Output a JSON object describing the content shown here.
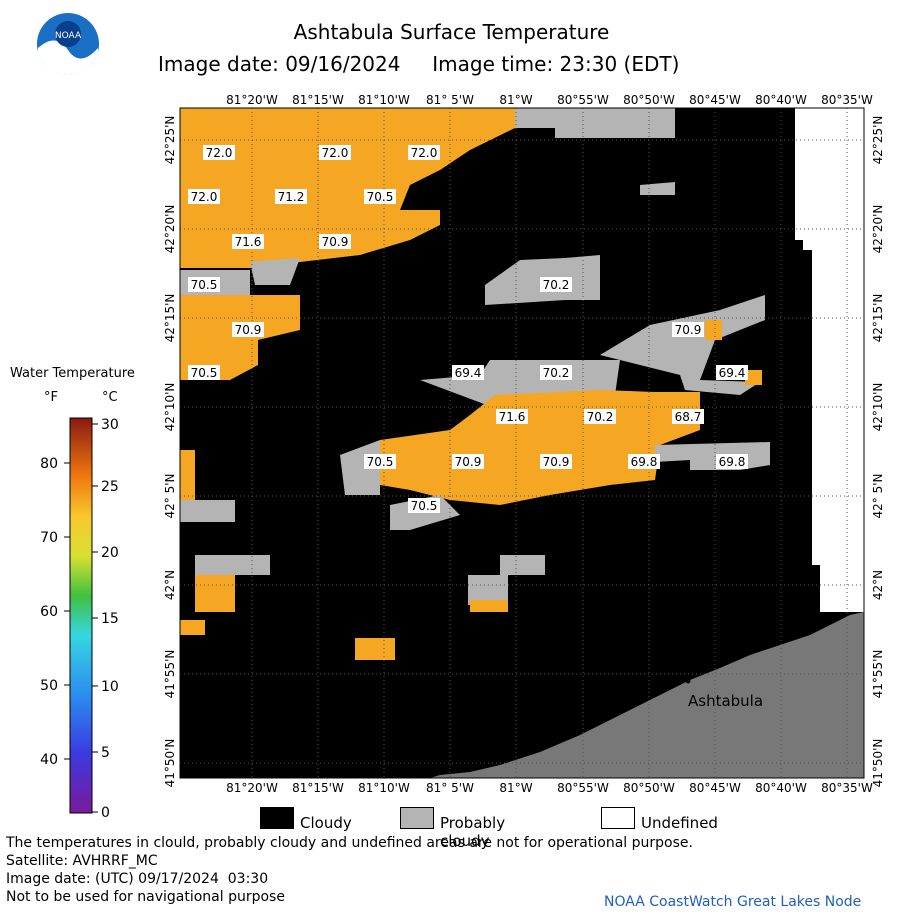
{
  "header": {
    "title": "Ashtabula Surface Temperature",
    "image_date_label": "Image date: 09/16/2024",
    "image_time_label": "Image time: 23:30 (EDT)",
    "logo_text": "NOAA"
  },
  "map": {
    "longitude_labels": [
      "81°20'W",
      "81°15'W",
      "81°10'W",
      "81° 5'W",
      "81°W",
      "80°55'W",
      "80°50'W",
      "80°45'W",
      "80°40'W",
      "80°35'W"
    ],
    "latitude_labels": [
      "42°25'N",
      "42°20'N",
      "42°15'N",
      "42°10'N",
      "42° 5'N",
      "42°N",
      "41°55'N",
      "41°50'N"
    ],
    "place_label": "Ashtabula",
    "temperature_labels": [
      "72.0",
      "72.0",
      "72.0",
      "72.0",
      "71.2",
      "70.5",
      "71.6",
      "70.9",
      "70.5",
      "70.9",
      "70.5",
      "70.2",
      "70.9",
      "69.4",
      "69.4",
      "70.2",
      "71.6",
      "70.2",
      "68.7",
      "70.5",
      "70.9",
      "70.9",
      "69.8",
      "69.8",
      "70.5"
    ],
    "colors": {
      "cloudy": "#000000",
      "probably_cloudy": "#b4b4b4",
      "undefined": "#ffffff",
      "land": "#787878",
      "water_warm": "#f5a623"
    }
  },
  "legend": {
    "title": "Water Temperature",
    "unit_f": "°F",
    "unit_c": "°C",
    "f_ticks": [
      "80",
      "70",
      "60",
      "50",
      "40"
    ],
    "c_ticks": [
      "30",
      "25",
      "20",
      "15",
      "10",
      "5",
      "0"
    ]
  },
  "swatch_legend": {
    "cloudy": "Cloudy",
    "probably_cloudy": "Probably cloudy",
    "undefined": "Undefined"
  },
  "footer": {
    "note": "The temperatures in clould, probably cloudy and undefined areas are not for operational purpose.",
    "satellite": "Satellite: AVHRRF_MC",
    "image_date_utc": "Image date: (UTC) 09/17/2024  03:30",
    "navigation": "Not to be used for navigational purpose",
    "credit": "NOAA CoastWatch Great Lakes Node"
  }
}
